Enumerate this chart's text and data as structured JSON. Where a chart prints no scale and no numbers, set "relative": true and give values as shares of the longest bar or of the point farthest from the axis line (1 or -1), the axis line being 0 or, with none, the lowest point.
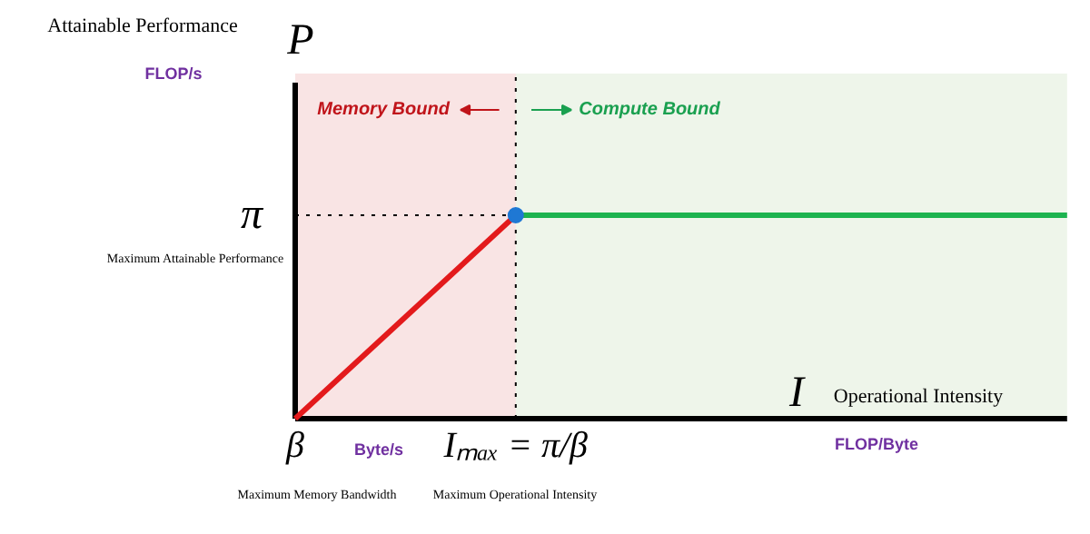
{
  "chart_data": {
    "type": "line",
    "relative": true,
    "xlabel": "Operational Intensity",
    "categories": [
      "β",
      null,
      "Iₘₐₓ = π/β",
      null,
      null,
      null,
      null,
      null
    ],
    "series": [
      {
        "color": "#e31a1c",
        "values": [
          0,
          0.5,
          1,
          null,
          null,
          null,
          null,
          null
        ]
      },
      {
        "color": "#1db34f",
        "values": [
          null,
          null,
          1,
          1,
          1,
          1,
          1,
          1
        ]
      },
      {
        "type": "scatter",
        "color": "#1f78d4",
        "values": [
          null,
          null,
          1,
          null,
          null,
          null,
          null,
          null
        ],
        "marker": "circle"
      }
    ],
    "bands": [
      {
        "axis": "x",
        "from": "β",
        "to": "Iₘₐₓ = π/β",
        "label": "Memory Bound",
        "color": "#f9e4e4"
      }
    ],
    "ref_lines": [
      {
        "axis": "x",
        "value": "Iₘₐₓ = π/β",
        "line_style": "dotted"
      },
      {
        "axis": "y",
        "value": 1,
        "line_style": "dotted"
      }
    ],
    "annotations": [
      "Compute Bound",
      "Attainable Performance",
      "P",
      "FLOP/s",
      "π",
      "Maximum Attainable Performance",
      "Byte/s",
      "Maximum Memory Bandwidth",
      "Maximum Operational Intensity",
      "I",
      "FLOP/Byte"
    ]
  }
}
